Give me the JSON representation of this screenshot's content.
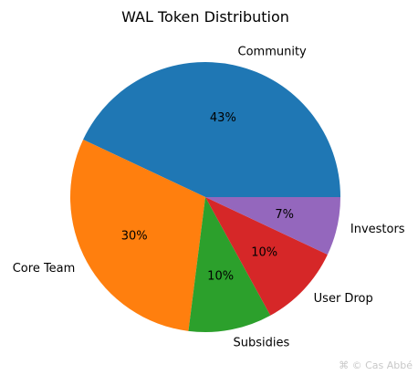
{
  "chart_data": {
    "type": "pie",
    "title": "WAL Token Distribution",
    "slices": [
      {
        "label": "Community",
        "value": 43,
        "pct_label": "43%",
        "color": "#1f77b4"
      },
      {
        "label": "Core Team",
        "value": 30,
        "pct_label": "30%",
        "color": "#ff7f0e"
      },
      {
        "label": "Subsidies",
        "value": 10,
        "pct_label": "10%",
        "color": "#2ca02c"
      },
      {
        "label": "User Drop",
        "value": 10,
        "pct_label": "10%",
        "color": "#d62728"
      },
      {
        "label": "Investors",
        "value": 7,
        "pct_label": "7%",
        "color": "#9467bd"
      }
    ],
    "start_angle_deg": 0,
    "direction": "counterclockwise"
  },
  "watermark": {
    "icon": "watermark-logo-icon",
    "text": "© Cas Abbé"
  }
}
